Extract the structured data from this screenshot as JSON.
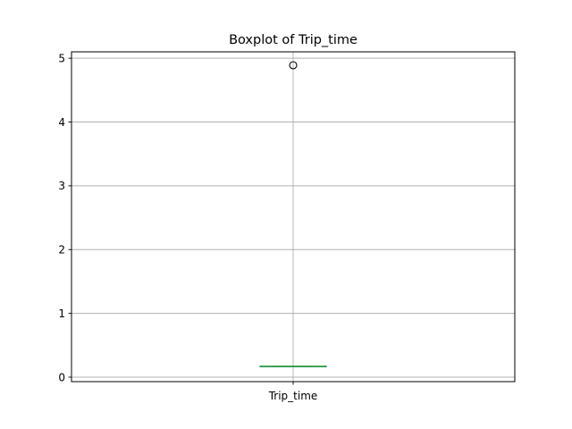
{
  "chart_data": {
    "type": "box",
    "title": "Boxplot of Trip_time",
    "xlabel": "",
    "ylabel": "",
    "categories": [
      "Trip_time"
    ],
    "ylim": [
      -0.07,
      5.1
    ],
    "yticks": [
      0,
      1,
      2,
      3,
      4,
      5
    ],
    "grid": true,
    "series": [
      {
        "whisker_low": 0.17,
        "q1": 0.17,
        "median": 0.17,
        "q3": 0.17,
        "whisker_high": 0.17,
        "outliers": [
          4.89
        ]
      }
    ],
    "colors": {
      "box": "#1f77b4",
      "median": "#2ca02c",
      "outlier_edge": "#000000"
    }
  }
}
